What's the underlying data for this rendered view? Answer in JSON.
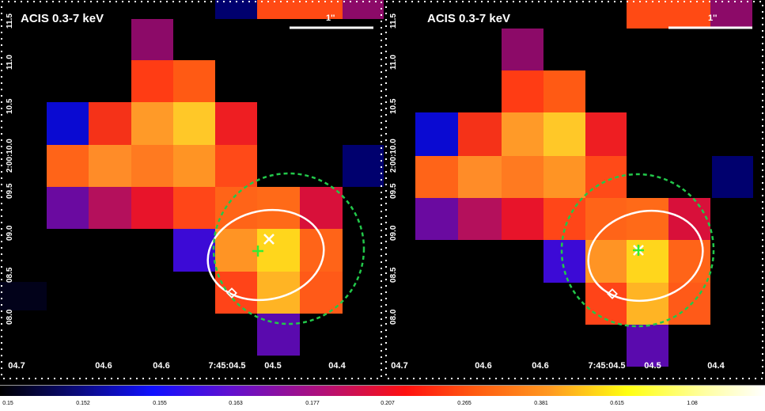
{
  "panels": [
    {
      "title": "ACIS 0.3-7 keV",
      "scale_label": "1''",
      "x_ticks": [
        "04.7",
        "04.6",
        "04.6",
        "7:45:04.5",
        "04.5",
        "04.4"
      ],
      "y_ticks": [
        "11.5",
        "11.0",
        "10.5",
        "2:00:10.0",
        "09.5",
        "09.0",
        "08.5",
        "08.0"
      ]
    },
    {
      "title": "ACIS 0.3-7 keV",
      "scale_label": "1''",
      "x_ticks": [
        "04.7",
        "04.6",
        "04.6",
        "7:45:04.5",
        "04.5",
        "04.4"
      ],
      "y_ticks": [
        "11.5",
        "11.0",
        "10.5",
        "2:00:10.0",
        "09.5",
        "09.0",
        "08.5",
        "08.0"
      ]
    }
  ],
  "colorbar": {
    "labels": [
      "0.15",
      "0.152",
      "0.155",
      "0.163",
      "0.177",
      "0.207",
      "0.265",
      "0.381",
      "0.615",
      "1.08"
    ]
  },
  "colors": {
    "background": "#000000",
    "contour": "#ffffff",
    "aperture": "#22c84a",
    "marker_plus": "#33ee33",
    "marker_x": "#ffffff"
  }
}
